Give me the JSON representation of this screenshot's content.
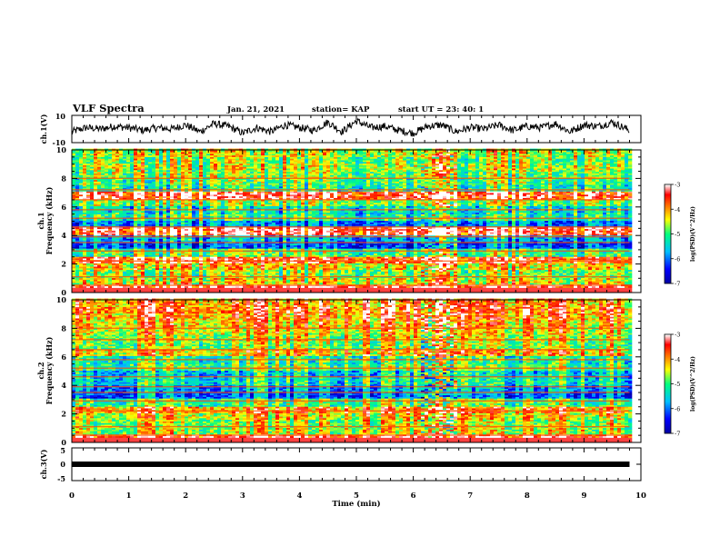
{
  "header": {
    "title": "VLF Spectra",
    "date": "Jan. 21, 2021",
    "station": "station= KAP",
    "start_time": "start  UT  =   23: 40: 1"
  },
  "colors": {
    "colormap": [
      "#000080",
      "#0000ff",
      "#00c0ff",
      "#00ff80",
      "#ffff00",
      "#ff8000",
      "#ff0000",
      "#ffffff"
    ]
  },
  "chart_data": [
    {
      "type": "line",
      "name": "ch1-waveform",
      "ylabel": "ch.1(V)",
      "ylim": [
        -10,
        10
      ],
      "yticks": [
        "10",
        "-10"
      ],
      "x_range_min": [
        0,
        9.8
      ],
      "x": [
        0,
        0.25,
        0.5,
        0.75,
        1.0,
        1.25,
        1.5,
        1.75,
        2.0,
        2.25,
        2.5,
        2.75,
        3.0,
        3.25,
        3.5,
        3.75,
        4.0,
        4.25,
        4.5,
        4.75,
        5.0,
        5.25,
        5.5,
        5.75,
        6.0,
        6.25,
        6.5,
        6.75,
        7.0,
        7.25,
        7.5,
        7.75,
        8.0,
        8.25,
        8.5,
        8.75,
        9.0,
        9.25,
        9.5,
        9.8
      ],
      "y": [
        -2,
        1,
        0,
        2,
        1,
        -1,
        1,
        0,
        3,
        -2,
        4,
        2,
        -3,
        1,
        -2,
        3,
        1,
        -1,
        5,
        -2,
        6,
        1,
        2,
        -1,
        -3,
        2,
        3,
        -2,
        1,
        0,
        3,
        -1,
        2,
        1,
        4,
        -2,
        3,
        2,
        5,
        -1
      ]
    },
    {
      "type": "heatmap",
      "name": "ch1-spectrogram",
      "ylabel": "Frequency (kHz)",
      "panel_label": "ch.1",
      "ylim": [
        0,
        10
      ],
      "yticks": [
        "0",
        "2",
        "4",
        "6",
        "8",
        "10"
      ],
      "colorbar": {
        "label": "log(PSD)(V^2/Hz)",
        "range": [
          -7,
          -3
        ],
        "ticks": [
          "-3",
          "-4",
          "-5",
          "-6",
          "-7"
        ]
      },
      "freq_bands_khz": [
        0,
        0.5,
        1,
        1.5,
        2,
        2.5,
        3,
        3.5,
        4,
        4.5,
        5,
        5.5,
        6,
        6.5,
        7,
        7.5,
        8,
        8.5,
        9,
        9.5
      ],
      "log_psd_bands": [
        -3.5,
        -4.6,
        -5.0,
        -4.5,
        -3.8,
        -5.2,
        -6.4,
        -6.0,
        -3.6,
        -6.2,
        -5.4,
        -5.6,
        -5.0,
        -3.6,
        -5.4,
        -5.2,
        -5.0,
        -4.8,
        -5.0,
        -4.8
      ]
    },
    {
      "type": "heatmap",
      "name": "ch2-spectrogram",
      "ylabel": "Frequency (kHz)",
      "panel_label": "ch.2",
      "ylim": [
        0,
        10
      ],
      "yticks": [
        "0",
        "2",
        "4",
        "6",
        "8",
        "10"
      ],
      "colorbar": {
        "label": "log(PSD)(V^2/Hz)",
        "range": [
          -7,
          -3
        ],
        "ticks": [
          "-3",
          "-4",
          "-5",
          "-6",
          "-7"
        ]
      },
      "freq_bands_khz": [
        0,
        0.5,
        1,
        1.5,
        2,
        2.5,
        3,
        3.5,
        4,
        4.5,
        5,
        5.5,
        6,
        6.5,
        7,
        7.5,
        8,
        8.5,
        9,
        9.5
      ],
      "log_psd_bands": [
        -3.6,
        -4.8,
        -4.9,
        -4.6,
        -4.2,
        -5.2,
        -6.3,
        -6.1,
        -5.6,
        -5.8,
        -5.2,
        -5.4,
        -4.4,
        -5.0,
        -4.8,
        -4.6,
        -4.4,
        -4.2,
        -4.0,
        -4.2
      ]
    },
    {
      "type": "line",
      "name": "ch3-signal",
      "ylabel": "ch.3(V)",
      "ylim": [
        -5,
        5
      ],
      "yticks": [
        "5",
        "0",
        "-5"
      ],
      "x_range_min": [
        0,
        9.8
      ],
      "y_constant": 0
    }
  ],
  "xaxis": {
    "label": "Time (min)",
    "range": [
      0,
      10
    ],
    "ticks": [
      "0",
      "1",
      "2",
      "3",
      "4",
      "5",
      "6",
      "7",
      "8",
      "9",
      "10"
    ]
  }
}
